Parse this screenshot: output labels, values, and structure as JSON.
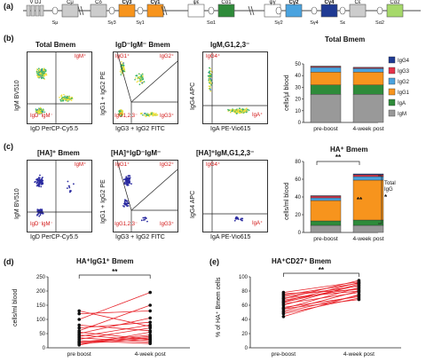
{
  "panel_labels": {
    "a": "(a)",
    "b": "(b)",
    "c": "(c)",
    "d": "(d)",
    "e": "(e)"
  },
  "locus": {
    "genes": [
      {
        "name": "V DJ",
        "color": "#cccccc",
        "bold": false
      },
      {
        "name": "Cμ",
        "color": "#cccccc",
        "bold": false
      },
      {
        "name": "Cδ",
        "color": "#cccccc",
        "bold": false
      },
      {
        "name": "Cγ3",
        "color": "#f7941d",
        "bold": true
      },
      {
        "name": "Cγ1",
        "color": "#f7941d",
        "bold": true
      },
      {
        "name": "ψε",
        "color": "#ffffff",
        "bold": false
      },
      {
        "name": "Cα1",
        "color": "#2e8b3a",
        "bold": false
      },
      {
        "name": "ψγ",
        "color": "#ffffff",
        "bold": false
      },
      {
        "name": "Cγ2",
        "color": "#4aa3df",
        "bold": true
      },
      {
        "name": "Cγ4",
        "color": "#1f3a93",
        "bold": true
      },
      {
        "name": "Cε",
        "color": "#cccccc",
        "bold": false
      },
      {
        "name": "Cα2",
        "color": "#a6d96a",
        "bold": false
      }
    ],
    "switch_regions": [
      "Sμ",
      "Sγ3",
      "Sγ1",
      "Sα1",
      "Sγ2",
      "Sγ4",
      "Sε",
      "Sα2"
    ]
  },
  "row_b": {
    "plot1": {
      "title": "Total Bmem",
      "xlabel": "IgD PerCP-Cy5.5",
      "ylabel": "IgM BV510",
      "gates": [
        "IgM⁺",
        "IgD⁻IgM⁻"
      ]
    },
    "plot2": {
      "title": "IgD⁻IgM⁻ Bmem",
      "xlabel": "IgG3 + IgG2 FITC",
      "ylabel": "IgG1 + IgG2 PE",
      "gates": [
        "IgG1⁺",
        "IgG2⁺",
        "IgG1,2,3⁻",
        "IgG3⁺"
      ]
    },
    "plot3": {
      "title": "IgM,G1,2,3⁻",
      "xlabel": "IgA PE-Vio615",
      "ylabel": "IgG4 APC",
      "gates": [
        "IgG4⁺",
        "IgA⁺"
      ]
    }
  },
  "row_c": {
    "plot1": {
      "title": "[HA]⁺ Bmem",
      "xlabel": "IgD PerCP-Cy5.5",
      "ylabel": "IgM BV510",
      "gates": [
        "IgM⁺",
        "IgD⁻IgM⁻"
      ]
    },
    "plot2": {
      "title": "[HA]⁺IgD⁻IgM⁻",
      "xlabel": "IgG3 + IgG2 FITC",
      "ylabel": "IgG1 + IgG2 PE",
      "gates": [
        "IgG1⁺",
        "IgG2⁺",
        "IgG1,2,3⁻",
        "IgG3⁺"
      ]
    },
    "plot3": {
      "title": "[HA]⁺IgM,G1,2,3⁻",
      "xlabel": "IgA PE-Vio615",
      "ylabel": "IgG4 APC",
      "gates": [
        "IgG4⁺",
        "IgA⁺"
      ]
    }
  },
  "bar_b": {
    "title": "Total Bmem",
    "ylabel": "cells/μl blood",
    "legend": [
      "IgG4",
      "IgG3",
      "IgG2",
      "IgG1",
      "IgA",
      "IgM"
    ],
    "colors": {
      "IgG4": "#1f3a93",
      "IgG3": "#e6334a",
      "IgG2": "#4aa3df",
      "IgG1": "#f7941d",
      "IgA": "#2e8b3a",
      "IgM": "#999999"
    }
  },
  "bar_c": {
    "title": "HA⁺ Bmem",
    "ylabel": "cells/ml blood",
    "sig_top": "**",
    "sig_inner": "**",
    "bracket_label": "Total IgG",
    "bracket_sig": "*"
  },
  "chart_data": [
    {
      "type": "bar",
      "stacked": true,
      "title": "Total Bmem",
      "ylabel": "cells/μl blood",
      "categories": [
        "pre-boost",
        "4-week post"
      ],
      "ylim": [
        0,
        50
      ],
      "yticks": [
        "0",
        "10",
        "20",
        "30",
        "40",
        "50"
      ],
      "series": [
        {
          "name": "IgM",
          "values": [
            24,
            24
          ]
        },
        {
          "name": "IgA",
          "values": [
            8,
            8
          ]
        },
        {
          "name": "IgG1",
          "values": [
            11,
            11
          ]
        },
        {
          "name": "IgG2",
          "values": [
            4,
            3
          ]
        },
        {
          "name": "IgG3",
          "values": [
            0.8,
            0.8
          ]
        },
        {
          "name": "IgG4",
          "values": [
            0.3,
            0.3
          ]
        }
      ]
    },
    {
      "type": "bar",
      "stacked": true,
      "title": "HA⁺ Bmem",
      "ylabel": "cells/ml blood",
      "categories": [
        "pre-boost",
        "4-week post"
      ],
      "ylim": [
        0,
        80
      ],
      "yticks": [
        "0",
        "20",
        "40",
        "60",
        "80"
      ],
      "series": [
        {
          "name": "IgM",
          "values": [
            8,
            8
          ]
        },
        {
          "name": "IgA",
          "values": [
            5,
            6
          ]
        },
        {
          "name": "IgG1",
          "values": [
            23,
            45
          ]
        },
        {
          "name": "IgG2",
          "values": [
            3,
            4
          ]
        },
        {
          "name": "IgG3",
          "values": [
            2,
            2
          ]
        },
        {
          "name": "IgG4",
          "values": [
            0.5,
            1
          ]
        }
      ]
    },
    {
      "type": "line",
      "title": "HA⁺IgG1⁺ Bmem",
      "ylabel": "cells/ml blood",
      "categories": [
        "pre boost",
        "4-week post"
      ],
      "ylim": [
        0,
        250
      ],
      "yticks": [
        "0",
        "50",
        "100",
        "150",
        "200",
        "250"
      ],
      "significance": "**",
      "pairs": [
        [
          10,
          55
        ],
        [
          15,
          40
        ],
        [
          20,
          35
        ],
        [
          25,
          15
        ],
        [
          30,
          70
        ],
        [
          35,
          20
        ],
        [
          40,
          80
        ],
        [
          45,
          25
        ],
        [
          50,
          105
        ],
        [
          55,
          30
        ],
        [
          60,
          150
        ],
        [
          70,
          90
        ],
        [
          80,
          60
        ],
        [
          100,
          195
        ],
        [
          120,
          130
        ],
        [
          130,
          75
        ],
        [
          20,
          45
        ],
        [
          15,
          30
        ]
      ]
    },
    {
      "type": "line",
      "title": "HA⁺CD27⁺ Bmem",
      "ylabel": "% of HA⁺ Bmem cells",
      "categories": [
        "pre-boost",
        "4-week post"
      ],
      "ylim": [
        0,
        100
      ],
      "yticks": [
        "0",
        "20",
        "40",
        "60",
        "80",
        "100"
      ],
      "significance": "**",
      "pairs": [
        [
          44,
          75
        ],
        [
          48,
          70
        ],
        [
          52,
          80
        ],
        [
          55,
          85
        ],
        [
          57,
          72
        ],
        [
          60,
          90
        ],
        [
          62,
          78
        ],
        [
          64,
          88
        ],
        [
          65,
          92
        ],
        [
          67,
          84
        ],
        [
          69,
          95
        ],
        [
          70,
          80
        ],
        [
          72,
          87
        ],
        [
          74,
          91
        ],
        [
          76,
          82
        ],
        [
          78,
          93
        ],
        [
          55,
          68
        ],
        [
          50,
          74
        ]
      ]
    }
  ]
}
